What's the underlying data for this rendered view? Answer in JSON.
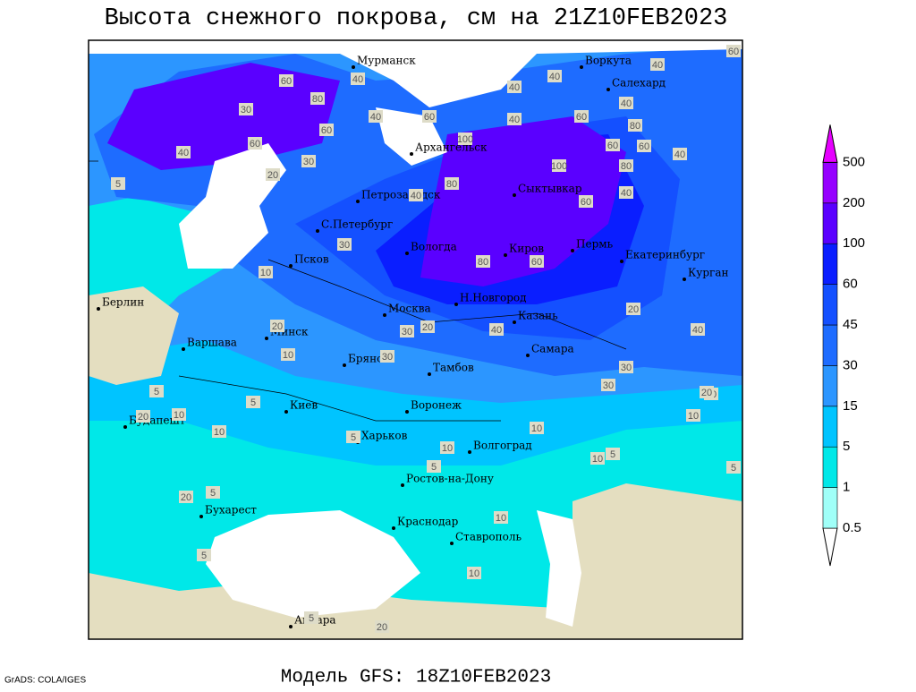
{
  "header": {
    "title": "Высота снежного покрова, см на 21Z10FEB2023"
  },
  "footer": {
    "subtitle": "Модель GFS: 18Z10FEB2023",
    "credit": "GrADS: COLA/IGES"
  },
  "colorbar": {
    "levels": [
      0.5,
      1,
      5,
      15,
      30,
      45,
      60,
      100,
      200,
      500
    ],
    "colors": [
      "#ffffff",
      "#a0fff8",
      "#00e8e8",
      "#00c4ff",
      "#2c96ff",
      "#1e6cff",
      "#1450ff",
      "#0a1eff",
      "#5a00ff",
      "#9600ff",
      "#e600ff"
    ]
  },
  "cities": [
    "Мурманск",
    "Воркута",
    "Салехард",
    "Архангельск",
    "Сыктывкар",
    "Петрозаводск",
    "С.Петербург",
    "Вологда",
    "Киров",
    "Пермь",
    "Екатеринбург",
    "Курган",
    "Псков",
    "Берлин",
    "Москва",
    "Н.Новгород",
    "Казань",
    "Минск",
    "Варшава",
    "Брянск",
    "Тамбов",
    "Самара",
    "Киев",
    "Воронеж",
    "Будапешт",
    "Харьков",
    "Волгоград",
    "Ростов-на-Дону",
    "Бухарест",
    "Краснодар",
    "Ставрополь",
    "Анкара"
  ],
  "contour_labels": [
    60,
    40,
    60,
    80,
    40,
    30,
    60,
    40,
    60,
    100,
    40,
    40,
    40,
    40,
    80,
    60,
    60,
    40,
    30,
    20,
    5,
    100,
    80,
    60,
    40,
    60,
    80,
    40,
    60,
    40,
    80,
    60,
    30,
    10,
    20,
    30,
    20,
    10,
    30,
    40,
    20,
    30,
    5,
    10,
    5,
    20,
    10,
    10,
    20,
    10,
    30,
    5,
    5,
    10,
    5,
    10,
    10,
    5,
    20,
    5,
    10,
    5,
    20,
    5,
    10,
    40
  ]
}
